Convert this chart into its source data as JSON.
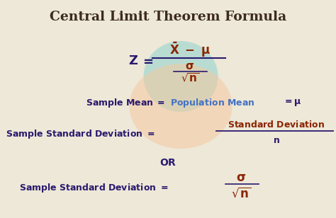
{
  "title": "Central Limit Theorem Formula",
  "bg_color": "#ede8d8",
  "title_color": "#3d2b1f",
  "dark_blue": "#2a1a6e",
  "brown_red": "#8b2500",
  "steel_blue": "#4472c4",
  "ellipse_teal_color": "#a8d8d0",
  "ellipse_peach_color": "#f5c8a0",
  "title_fontsize": 13.5,
  "body_fontsize": 9.0,
  "formula_fontsize": 11.5
}
